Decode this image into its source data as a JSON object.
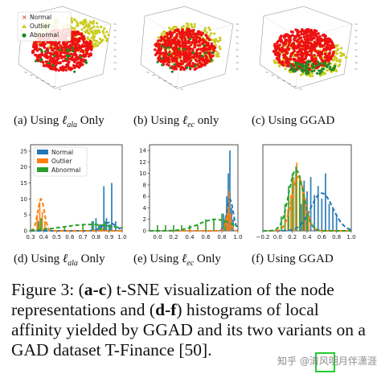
{
  "colors": {
    "normal_scatter": "#ee1111",
    "outlier_scatter": "#cccc22",
    "abnormal_scatter": "#228822",
    "normal_hist": "#1f77b4",
    "outlier_hist": "#ff7f0e",
    "abnormal_hist": "#2ca02c",
    "cite_box": "#22cc33"
  },
  "tsne_legend": [
    "Normal",
    "Outlier",
    "Abnormal"
  ],
  "subcaptions_top": {
    "a": {
      "prefix": "(a) Using ",
      "math": "ℓ",
      "sub": "ala",
      "suffix": " Only"
    },
    "b": {
      "prefix": "(b) Using ",
      "math": "ℓ",
      "sub": "ec",
      "suffix": " only"
    },
    "c": {
      "text": "(c) Using GGAD"
    }
  },
  "subcaptions_bottom": {
    "d": {
      "prefix": "(d) Using ",
      "math": "ℓ",
      "sub": "ala",
      "suffix": " Only"
    },
    "e": {
      "prefix": "(e) Using ",
      "math": "ℓ",
      "sub": "ec",
      "suffix": " Only"
    },
    "f": {
      "text": "(f) Using GGAD"
    }
  },
  "figure_caption": {
    "label": "Figure 3:",
    "part1": "(",
    "bold1": "a-c",
    "part2": ") t-SNE visualization of the node representations and (",
    "bold2": "d-f",
    "part3": ") histograms of local affinity yielded by GGAD and its two variants on a GAD dataset T-Finance [50]."
  },
  "watermark": "知乎 @清风明月伴潇涯",
  "chart_data": [
    {
      "id": "d",
      "type": "bar",
      "legend": [
        "Normal",
        "Outlier",
        "Abnormal"
      ],
      "legend_position": "top-left",
      "xlim": [
        0.3,
        1.0
      ],
      "ylim": [
        0,
        27
      ],
      "xticks": [
        "0.3",
        "0.4",
        "0.5",
        "0.6",
        "0.7",
        "0.8",
        "0.9",
        "1.0"
      ],
      "yticks": [
        "0",
        "5",
        "10",
        "15",
        "20",
        "25"
      ],
      "series": [
        {
          "name": "Normal",
          "bars": [
            [
              0.77,
              3
            ],
            [
              0.8,
              4
            ],
            [
              0.83,
              2
            ],
            [
              0.86,
              14
            ],
            [
              0.88,
              4
            ],
            [
              0.9,
              2
            ],
            [
              0.92,
              15
            ],
            [
              0.95,
              3
            ]
          ],
          "curve": {
            "mu": 0.9,
            "sigma": 0.05,
            "peak": 2.6
          }
        },
        {
          "name": "Outlier",
          "bars": [
            [
              0.35,
              5
            ],
            [
              0.37,
              9
            ],
            [
              0.39,
              6
            ],
            [
              0.41,
              3
            ],
            [
              0.85,
              1
            ]
          ],
          "curve": {
            "mu": 0.38,
            "sigma": 0.025,
            "peak": 10
          }
        },
        {
          "name": "Abnormal",
          "bars": [
            [
              0.36,
              3
            ],
            [
              0.38,
              4
            ],
            [
              0.42,
              1
            ],
            [
              0.56,
              1
            ],
            [
              0.7,
              2
            ],
            [
              0.78,
              3
            ],
            [
              0.82,
              2
            ],
            [
              0.84,
              2
            ],
            [
              0.87,
              3
            ],
            [
              0.91,
              2
            ]
          ],
          "curve": {
            "mu": 0.75,
            "sigma": 0.2,
            "peak": 2
          }
        }
      ]
    },
    {
      "id": "e",
      "type": "bar",
      "legend": [],
      "xlim": [
        -0.1,
        1.0
      ],
      "ylim": [
        0,
        15
      ],
      "xticks": [
        "0.0",
        "0.2",
        "0.4",
        "0.6",
        "0.8",
        "1.0"
      ],
      "yticks": [
        "0",
        "2",
        "4",
        "6",
        "8",
        "10",
        "12",
        "14"
      ],
      "series": [
        {
          "name": "Normal",
          "bars": [
            [
              0.82,
              3
            ],
            [
              0.86,
              6
            ],
            [
              0.88,
              10
            ],
            [
              0.9,
              14
            ],
            [
              0.92,
              4
            ],
            [
              0.94,
              2
            ]
          ],
          "curve": {
            "mu": 0.9,
            "sigma": 0.04,
            "peak": 5.5
          }
        },
        {
          "name": "Outlier",
          "bars": [
            [
              0.85,
              2
            ],
            [
              0.87,
              4
            ],
            [
              0.89,
              7
            ],
            [
              0.91,
              3
            ]
          ],
          "curve": {
            "mu": 0.88,
            "sigma": 0.03,
            "peak": 3
          }
        },
        {
          "name": "Abnormal",
          "bars": [
            [
              0.0,
              1
            ],
            [
              0.1,
              1
            ],
            [
              0.2,
              1
            ],
            [
              0.3,
              1
            ],
            [
              0.4,
              1
            ],
            [
              0.5,
              1
            ],
            [
              0.6,
              2
            ],
            [
              0.7,
              2
            ],
            [
              0.8,
              3
            ],
            [
              0.84,
              2
            ]
          ],
          "curve": {
            "mu": 0.72,
            "sigma": 0.2,
            "peak": 2
          }
        }
      ]
    },
    {
      "id": "f",
      "type": "bar",
      "legend": [],
      "xlim": [
        -0.2,
        1.0
      ],
      "ylim": [
        0,
        4.8
      ],
      "xticks": [
        "−0.2",
        "0.0",
        "0.2",
        "0.4",
        "0.6",
        "0.8",
        "1.0"
      ],
      "yticks": [],
      "series": [
        {
          "name": "Normal",
          "bars": [
            [
              0.32,
              1.5
            ],
            [
              0.36,
              2.8
            ],
            [
              0.4,
              2.2
            ],
            [
              0.45,
              3
            ],
            [
              0.5,
              2
            ],
            [
              0.55,
              2.5
            ],
            [
              0.6,
              1.8
            ],
            [
              0.65,
              3.2
            ],
            [
              0.7,
              1.5
            ],
            [
              0.75,
              1.2
            ],
            [
              0.8,
              0.8
            ]
          ],
          "curve": {
            "mu": 0.6,
            "sigma": 0.15,
            "peak": 2.1
          }
        },
        {
          "name": "Outlier",
          "bars": [
            [
              0.14,
              1.2
            ],
            [
              0.18,
              2
            ],
            [
              0.22,
              3
            ],
            [
              0.26,
              3.8
            ],
            [
              0.3,
              3.1
            ],
            [
              0.34,
              2.4
            ],
            [
              0.38,
              1.6
            ],
            [
              0.42,
              0.8
            ]
          ],
          "curve": {
            "mu": 0.28,
            "sigma": 0.09,
            "peak": 3
          }
        },
        {
          "name": "Abnormal",
          "bars": [
            [
              0.05,
              0.8
            ],
            [
              0.1,
              1.5
            ],
            [
              0.15,
              2.5
            ],
            [
              0.2,
              3.2
            ],
            [
              0.25,
              3.6
            ],
            [
              0.3,
              2.8
            ],
            [
              0.35,
              1.8
            ],
            [
              0.4,
              0.9
            ]
          ],
          "curve": {
            "mu": 0.25,
            "sigma": 0.1,
            "peak": 3.4
          }
        }
      ]
    }
  ]
}
